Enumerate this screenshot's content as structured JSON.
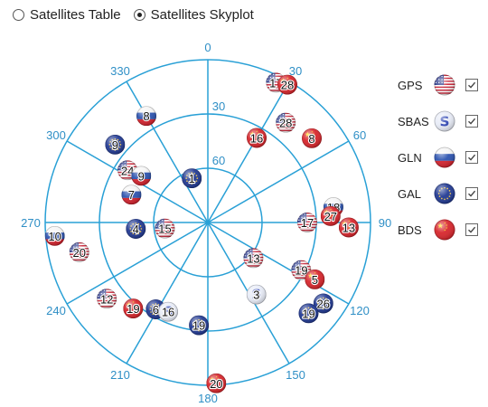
{
  "view_toggle": {
    "options": [
      {
        "label": "Satellites Table",
        "selected": false
      },
      {
        "label": "Satellites Skyplot",
        "selected": true
      }
    ]
  },
  "skyplot": {
    "grid_color": "#29a0d6",
    "label_color": "#2f8fc6",
    "azimuth_labels": [
      "0",
      "30",
      "60",
      "90",
      "120",
      "150",
      "180",
      "210",
      "240",
      "270",
      "300",
      "330"
    ],
    "elevation_labels": [
      "30",
      "60"
    ],
    "satellites": [
      {
        "id": "8",
        "system": "GLN",
        "az": 330,
        "el": 22
      },
      {
        "id": "9",
        "system": "GAL",
        "az": 310,
        "el": 23
      },
      {
        "id": "17",
        "system": "GPS",
        "az": 26,
        "el": 4
      },
      {
        "id": "28",
        "system": "BDS",
        "az": 30,
        "el": 2
      },
      {
        "id": "28",
        "system": "GPS",
        "az": 38,
        "el": 20
      },
      {
        "id": "8",
        "system": "BDS",
        "az": 51,
        "el": 16
      },
      {
        "id": "16",
        "system": "BDS",
        "az": 30,
        "el": 36
      },
      {
        "id": "24",
        "system": "GPS",
        "az": 303,
        "el": 37
      },
      {
        "id": "9",
        "system": "GLN",
        "az": 305,
        "el": 45
      },
      {
        "id": "7",
        "system": "GLN",
        "az": 290,
        "el": 45
      },
      {
        "id": "1",
        "system": "GAL",
        "az": 340,
        "el": 64
      },
      {
        "id": "4",
        "system": "GAL",
        "az": 265,
        "el": 50
      },
      {
        "id": "15",
        "system": "GPS",
        "az": 262,
        "el": 66
      },
      {
        "id": "18",
        "system": "GLN",
        "az": 83,
        "el": 20
      },
      {
        "id": "27",
        "system": "BDS",
        "az": 87,
        "el": 22
      },
      {
        "id": "13",
        "system": "BDS",
        "az": 92,
        "el": 12
      },
      {
        "id": "17",
        "system": "GPS",
        "az": 90,
        "el": 35
      },
      {
        "id": "10",
        "system": "GLN",
        "az": 265,
        "el": 5
      },
      {
        "id": "20",
        "system": "GPS",
        "az": 257,
        "el": 17
      },
      {
        "id": "13",
        "system": "GPS",
        "az": 128,
        "el": 58
      },
      {
        "id": "19",
        "system": "GPS",
        "az": 117,
        "el": 32
      },
      {
        "id": "5",
        "system": "BDS",
        "az": 118,
        "el": 23
      },
      {
        "id": "26",
        "system": "GAL",
        "az": 125,
        "el": 12
      },
      {
        "id": "19",
        "system": "GAL",
        "az": 132,
        "el": 15
      },
      {
        "id": "3",
        "system": "SBAS",
        "az": 146,
        "el": 42
      },
      {
        "id": "12",
        "system": "GPS",
        "az": 233,
        "el": 20
      },
      {
        "id": "19",
        "system": "BDS",
        "az": 221,
        "el": 27
      },
      {
        "id": "6",
        "system": "GAL",
        "az": 211,
        "el": 34
      },
      {
        "id": "16",
        "system": "SBAS",
        "az": 204,
        "el": 36
      },
      {
        "id": "19",
        "system": "GAL",
        "az": 185,
        "el": 33
      },
      {
        "id": "20",
        "system": "BDS",
        "az": 177,
        "el": 1
      }
    ]
  },
  "legend": [
    {
      "label": "GPS",
      "icon": "gps-flag-icon",
      "checked": true
    },
    {
      "label": "SBAS",
      "icon": "sbas-s-icon",
      "checked": true
    },
    {
      "label": "GLN",
      "icon": "gln-flag-icon",
      "checked": true
    },
    {
      "label": "GAL",
      "icon": "gal-flag-icon",
      "checked": true
    },
    {
      "label": "BDS",
      "icon": "bds-flag-icon",
      "checked": true
    }
  ],
  "colors": {
    "gps_red": "#c8273a",
    "gps_blue": "#2b3a8c",
    "gal_blue": "#223a93",
    "gal_star": "#f2c94c",
    "bds_red": "#d7262c",
    "bds_star": "#ffd200",
    "gln_white": "#f5f5f5",
    "gln_blue": "#2d54b0",
    "gln_red": "#d3232e",
    "sbas_fill": "#e8ecf7",
    "sbas_letter": "#3147b3"
  }
}
